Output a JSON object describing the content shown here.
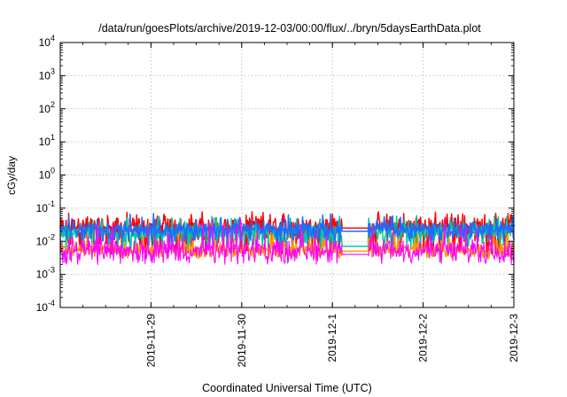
{
  "chart_data": {
    "type": "line",
    "title": "/data/run/goesPlots/archive/2019-12-03/00:00/flux/../bryn/5daysEarthData.plot",
    "xlabel": "Coordinated Universal Time (UTC)",
    "ylabel": "cGy/day",
    "y_scale": "log",
    "ylim": [
      0.0001,
      10000
    ],
    "y_ticks": [
      {
        "value": 0.0001,
        "base": "10",
        "exp": "-4"
      },
      {
        "value": 0.001,
        "base": "10",
        "exp": "-3"
      },
      {
        "value": 0.01,
        "base": "10",
        "exp": "-2"
      },
      {
        "value": 0.1,
        "base": "10",
        "exp": "-1"
      },
      {
        "value": 1,
        "base": "10",
        "exp": "0"
      },
      {
        "value": 10,
        "base": "10",
        "exp": "1"
      },
      {
        "value": 100,
        "base": "10",
        "exp": "2"
      },
      {
        "value": 1000,
        "base": "10",
        "exp": "3"
      },
      {
        "value": 10000,
        "base": "10",
        "exp": "4"
      }
    ],
    "xlim": [
      "2019-11-28 00:00",
      "2019-12-03 00:00"
    ],
    "x_ticks": [
      {
        "value": "2019-11-29 00:00",
        "label": "2019-11-29"
      },
      {
        "value": "2019-11-30 00:00",
        "label": "2019-11-30"
      },
      {
        "value": "2019-12-01 00:00",
        "label": "2019-12-01"
      },
      {
        "value": "2019-12-02 00:00",
        "label": "2019-12-02"
      },
      {
        "value": "2019-12-03 00:00",
        "label": "2019-12-03"
      }
    ],
    "x_tick_labels": [
      "2019-11-29",
      "2019-11-30",
      "2019-12-1",
      "2019-12-2",
      "2019-12-3"
    ],
    "grid": true,
    "data_gap": [
      "2019-12-01 02:24",
      "2019-12-01 09:36"
    ],
    "series": [
      {
        "color": "#ff0000",
        "y_range": [
          0.004,
          0.08
        ],
        "typical": 0.03,
        "gap_level": 0.025
      },
      {
        "color": "#00c8a0",
        "y_range": [
          0.005,
          0.06
        ],
        "typical": 0.02,
        "gap_level": 0.007
      },
      {
        "color": "#ff9900",
        "y_range": [
          0.003,
          0.02
        ],
        "typical": 0.006,
        "gap_level": 0.005
      },
      {
        "color": "#1e6cff",
        "y_range": [
          0.01,
          0.07
        ],
        "typical": 0.025,
        "gap_level": 0.02
      },
      {
        "color": "#ff00ff",
        "y_range": [
          0.002,
          0.05
        ],
        "typical": 0.006,
        "gap_level": 0.004
      }
    ]
  }
}
